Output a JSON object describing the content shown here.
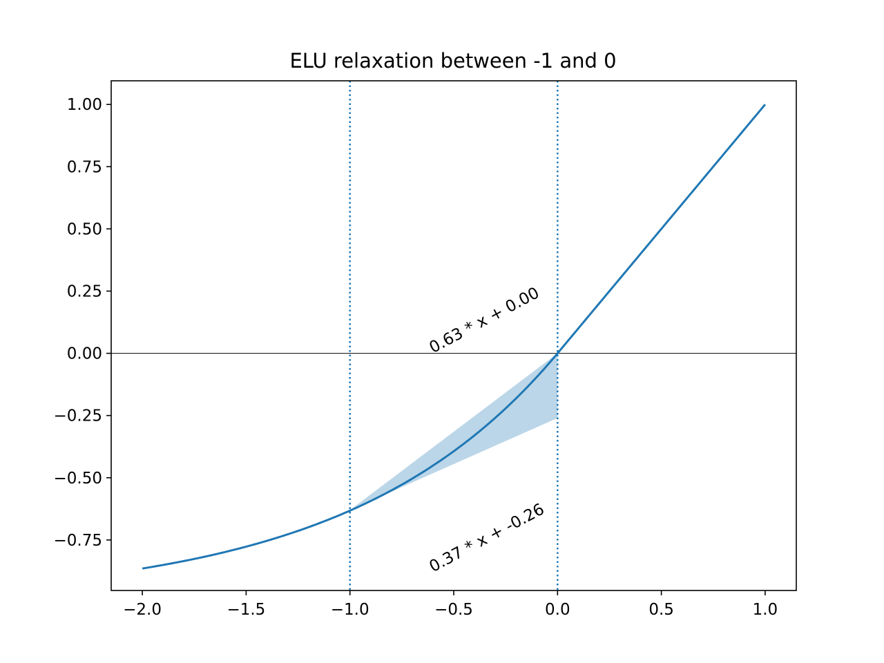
{
  "chart_data": {
    "type": "line",
    "title": "ELU relaxation between -1 and 0",
    "xlabel": "",
    "ylabel": "",
    "xlim": [
      -2.15,
      1.15
    ],
    "ylim": [
      -0.953,
      1.095
    ],
    "grid": false,
    "legend": null,
    "x_ticks": [
      -2.0,
      -1.5,
      -1.0,
      -0.5,
      0.0,
      0.5,
      1.0
    ],
    "x_tick_labels": [
      "−2.0",
      "−1.5",
      "−1.0",
      "−0.5",
      "0.0",
      "0.5",
      "1.0"
    ],
    "y_ticks": [
      1.0,
      0.75,
      0.5,
      0.25,
      0.0,
      -0.25,
      -0.5,
      -0.75
    ],
    "y_tick_labels": [
      "1.00",
      "0.75",
      "0.50",
      "0.25",
      "0.00",
      "−0.25",
      "−0.50",
      "−0.75"
    ],
    "curve": {
      "function": "ELU",
      "x_range": [
        -2.0,
        1.0
      ],
      "color": "#1f77b4"
    },
    "horizontal_line": {
      "y": 0.0,
      "color": "#000000"
    },
    "vertical_lines": [
      {
        "x": -1.0,
        "style": "dotted",
        "color": "#1f77b4"
      },
      {
        "x": 0.0,
        "style": "dotted",
        "color": "#1f77b4"
      }
    ],
    "relaxation_region": {
      "x_range": [
        -1.0,
        0.0
      ],
      "upper": {
        "slope": 0.63,
        "intercept": 0.0
      },
      "lower": {
        "slope": 0.37,
        "intercept": -0.26
      },
      "fill_color": "#1f77b4",
      "fill_opacity": 0.3
    },
    "annotations": [
      {
        "text": "0.63 * x + 0.00",
        "x": -0.6,
        "y": 0.0,
        "rotation_deg": -28
      },
      {
        "text": "0.37 * x + -0.26",
        "x": -0.6,
        "y": -0.88,
        "rotation_deg": -28
      }
    ]
  }
}
